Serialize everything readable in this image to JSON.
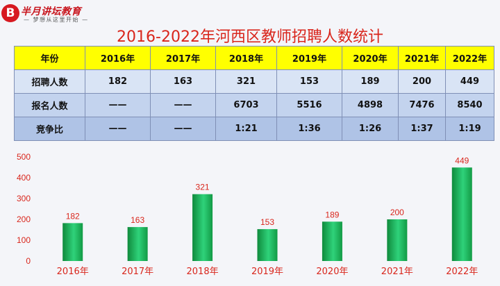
{
  "logo": {
    "mark": "B",
    "name": "半月讲坛教育",
    "tagline": "— 梦想从这里开始 —"
  },
  "title": "2016-2022年河西区教师招聘人数统计",
  "table": {
    "header": [
      "年份",
      "2016年",
      "2017年",
      "2018年",
      "2019年",
      "2020年",
      "2021年",
      "2022年"
    ],
    "rows": [
      [
        "招聘人数",
        "182",
        "163",
        "321",
        "153",
        "189",
        "200",
        "449"
      ],
      [
        "报名人数",
        "——",
        "——",
        "6703",
        "5516",
        "4898",
        "7476",
        "8540"
      ],
      [
        "竞争比",
        "——",
        "——",
        "1:21",
        "1:36",
        "1:26",
        "1:37",
        "1:19"
      ]
    ]
  },
  "chart_data": {
    "type": "bar",
    "categories": [
      "2016年",
      "2017年",
      "2018年",
      "2019年",
      "2020年",
      "2021年",
      "2022年"
    ],
    "values": [
      182,
      163,
      321,
      153,
      189,
      200,
      449
    ],
    "yticks": [
      0,
      100,
      200,
      300,
      400,
      500
    ],
    "ylim": [
      0,
      500
    ],
    "grid": false,
    "colors": {
      "bar_dark": "#0f8a3c",
      "bar_light": "#2fd27a",
      "label": "#d9261c"
    }
  }
}
